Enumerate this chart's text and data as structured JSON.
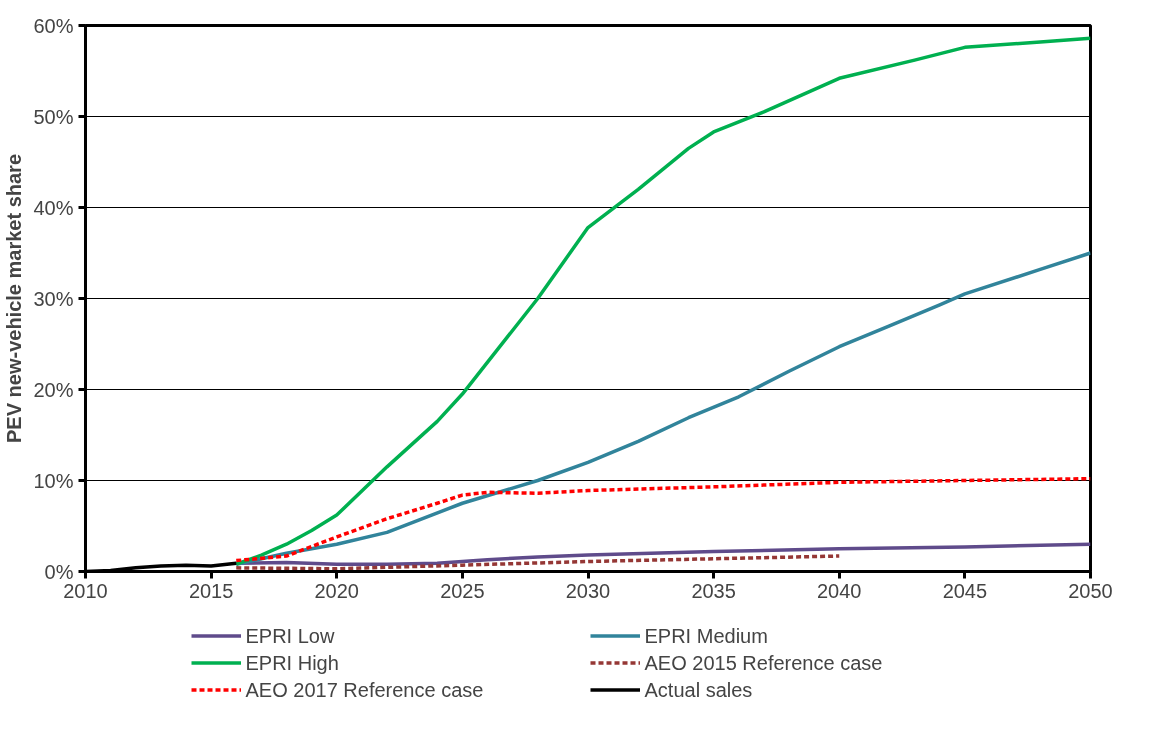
{
  "chart_data": {
    "type": "line",
    "ylabel": "PEV new-vehicle market share",
    "xlim": [
      2010,
      2050
    ],
    "xticks": [
      2010,
      2015,
      2020,
      2025,
      2030,
      2035,
      2040,
      2045,
      2050
    ],
    "ylim": [
      0,
      60
    ],
    "yticks": [
      {
        "value": 0,
        "label": "0%"
      },
      {
        "value": 10,
        "label": "10%"
      },
      {
        "value": 20,
        "label": "20%"
      },
      {
        "value": 30,
        "label": "30%"
      },
      {
        "value": 40,
        "label": "40%"
      },
      {
        "value": 50,
        "label": "50%"
      },
      {
        "value": 60,
        "label": "60%"
      }
    ],
    "grid": "y",
    "legend": "bottom",
    "marker": "none",
    "series": [
      {
        "name": "EPRI Low",
        "color": "#5f4b8b",
        "line_style": "solid",
        "x": [
          2016,
          2018,
          2020,
          2022,
          2024,
          2026,
          2028,
          2030,
          2035,
          2040,
          2045,
          2050
        ],
        "values": [
          0.9,
          1.0,
          0.8,
          0.8,
          0.9,
          1.3,
          1.6,
          1.8,
          2.2,
          2.5,
          2.7,
          3.0
        ]
      },
      {
        "name": "EPRI Medium",
        "color": "#31849b",
        "line_style": "solid",
        "x": [
          2016,
          2018,
          2020,
          2022,
          2025,
          2028,
          2030,
          2032,
          2034,
          2036,
          2038,
          2040,
          2042,
          2044,
          2045,
          2048,
          2050
        ],
        "values": [
          0.8,
          2.0,
          3.0,
          4.3,
          7.5,
          10.0,
          12.0,
          14.3,
          16.9,
          19.2,
          22.0,
          24.7,
          27.0,
          29.3,
          30.5,
          33.2,
          35.0
        ]
      },
      {
        "name": "EPRI High",
        "color": "#00b050",
        "line_style": "solid",
        "x": [
          2016,
          2017,
          2018,
          2019,
          2020,
          2022,
          2024,
          2025,
          2028,
          2030,
          2032,
          2034,
          2035,
          2037,
          2040,
          2043,
          2045,
          2048,
          2050
        ],
        "values": [
          0.8,
          1.8,
          3.0,
          4.5,
          6.2,
          11.5,
          16.5,
          19.5,
          30.0,
          37.8,
          42.0,
          46.5,
          48.3,
          50.5,
          54.2,
          56.2,
          57.6,
          58.2,
          58.6
        ]
      },
      {
        "name": "AEO 2015 Reference case",
        "color": "#953735",
        "line_style": "dashed",
        "x": [
          2016,
          2020,
          2025,
          2030,
          2035,
          2040
        ],
        "values": [
          0.4,
          0.3,
          0.7,
          1.1,
          1.4,
          1.7
        ]
      },
      {
        "name": "AEO 2017 Reference case",
        "color": "#ff0000",
        "line_style": "dashed",
        "x": [
          2016,
          2018,
          2020,
          2022,
          2024,
          2025,
          2026,
          2028,
          2030,
          2035,
          2040,
          2045,
          2050
        ],
        "values": [
          1.2,
          1.7,
          3.8,
          5.8,
          7.5,
          8.4,
          8.7,
          8.6,
          8.9,
          9.3,
          9.8,
          10.0,
          10.2
        ]
      },
      {
        "name": "Actual sales",
        "color": "#000000",
        "line_style": "solid",
        "x": [
          2010,
          2011,
          2012,
          2013,
          2014,
          2015,
          2016
        ],
        "values": [
          0.0,
          0.1,
          0.4,
          0.6,
          0.7,
          0.6,
          0.9
        ]
      }
    ]
  }
}
